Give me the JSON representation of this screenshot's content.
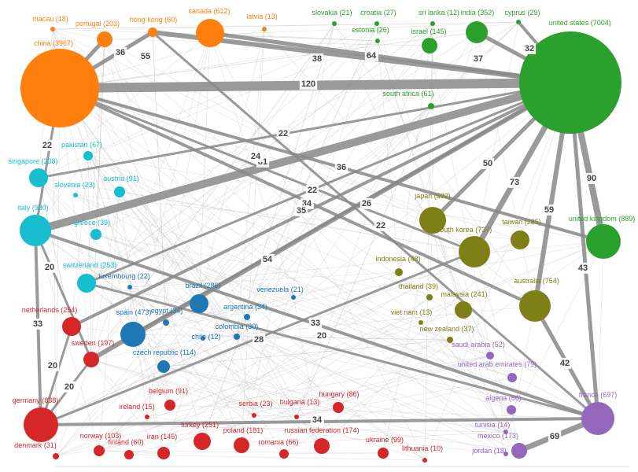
{
  "nodes": [
    {
      "label": "macau (18)"
    },
    {
      "label": "portugal (203)"
    },
    {
      "label": "hong kong (60)"
    },
    {
      "label": "canada (612)"
    },
    {
      "label": "latvia (13)"
    },
    {
      "label": "china (3967)"
    },
    {
      "label": "slovakia (21)"
    },
    {
      "label": "croatia (27)"
    },
    {
      "label": "sri lanka (12)"
    },
    {
      "label": "india (352)"
    },
    {
      "label": "cyprus (29)"
    },
    {
      "label": "estonia (26)"
    },
    {
      "label": "israel (145)"
    },
    {
      "label": "united states (7004)"
    },
    {
      "label": "south africa (61)"
    },
    {
      "label": "pakistan (67)"
    },
    {
      "label": "singapore (238)"
    },
    {
      "label": "slovenia (23)"
    },
    {
      "label": "austria (91)"
    },
    {
      "label": "italy (930)"
    },
    {
      "label": "greece (39)"
    },
    {
      "label": "switzerland (253)"
    },
    {
      "label": "luxembourg (22)"
    },
    {
      "label": "brazil (286)"
    },
    {
      "label": "venezuela (21)"
    },
    {
      "label": "egypt (34)"
    },
    {
      "label": "argentina (34)"
    },
    {
      "label": "spain (473)"
    },
    {
      "label": "chile (12)"
    },
    {
      "label": "colombia (30)"
    },
    {
      "label": "czech republic (114)"
    },
    {
      "label": "netherlands (254)"
    },
    {
      "label": "sweden (197)"
    },
    {
      "label": "germany (838)"
    },
    {
      "label": "belgium (91)"
    },
    {
      "label": "ireland (15)"
    },
    {
      "label": "serbia (23)"
    },
    {
      "label": "bulgaria (13)"
    },
    {
      "label": "hungary (86)"
    },
    {
      "label": "turkey (251)"
    },
    {
      "label": "poland (181)"
    },
    {
      "label": "russian federation (174)"
    },
    {
      "label": "ukraine (99)"
    },
    {
      "label": "denmark (31)"
    },
    {
      "label": "norway (103)"
    },
    {
      "label": "finland (60)"
    },
    {
      "label": "iran (145)"
    },
    {
      "label": "romania (66)"
    },
    {
      "label": "lithuania (10)"
    },
    {
      "label": "japan (592)"
    },
    {
      "label": "taiwan (285)"
    },
    {
      "label": "south korea (737)"
    },
    {
      "label": "indonesia (48)"
    },
    {
      "label": "thailand (39)"
    },
    {
      "label": "malaysia (241)"
    },
    {
      "label": "australia (754)"
    },
    {
      "label": "viet nam (13)"
    },
    {
      "label": "new zealand (37)"
    },
    {
      "label": "united kingdom (889)"
    },
    {
      "label": "saudi arabia (52)"
    },
    {
      "label": "united arab emirates (79)"
    },
    {
      "label": "algeria (66)"
    },
    {
      "label": "france (697)"
    },
    {
      "label": "tunisia (14)"
    },
    {
      "label": "mexico (173)"
    },
    {
      "label": "jordan (18)"
    }
  ],
  "edges": [
    {
      "label": "120"
    },
    {
      "label": "38"
    },
    {
      "label": "64"
    },
    {
      "label": "36"
    },
    {
      "label": "55"
    },
    {
      "label": "37"
    },
    {
      "label": "32"
    },
    {
      "label": "22"
    },
    {
      "label": "81"
    },
    {
      "label": "24"
    },
    {
      "label": "36"
    },
    {
      "label": "22"
    },
    {
      "label": "34"
    },
    {
      "label": "35"
    },
    {
      "label": "26"
    },
    {
      "label": "22"
    },
    {
      "label": "54"
    },
    {
      "label": "28"
    },
    {
      "label": "50"
    },
    {
      "label": "73"
    },
    {
      "label": "59"
    },
    {
      "label": "90"
    },
    {
      "label": "43"
    },
    {
      "label": "42"
    },
    {
      "label": "34"
    },
    {
      "label": "69"
    },
    {
      "label": "22"
    },
    {
      "label": "20"
    },
    {
      "label": "33"
    },
    {
      "label": "20"
    },
    {
      "label": "20"
    },
    {
      "label": "33"
    },
    {
      "label": "20"
    }
  ]
}
